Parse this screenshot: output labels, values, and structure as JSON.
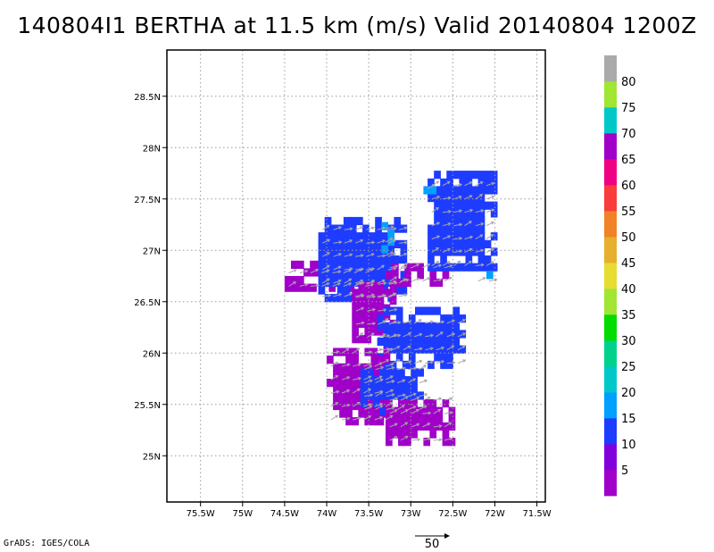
{
  "title": "140804I1 BERTHA at 11.5 km (m/s) Valid 20140804 1200Z",
  "credit": "GrADS: IGES/COLA",
  "chart_data": {
    "type": "heatmap",
    "title": "140804I1 BERTHA at 11.5 km (m/s) Valid 20140804 1200Z",
    "xlabel": "",
    "ylabel": "",
    "xlim": [
      -75.9,
      -71.4
    ],
    "ylim": [
      24.55,
      28.95
    ],
    "x_ticks": [
      -75.5,
      -75,
      -74.5,
      -74,
      -73.5,
      -73,
      -72.5,
      -72,
      -71.5
    ],
    "x_tick_labels": [
      "75.5W",
      "75W",
      "74.5W",
      "74W",
      "73.5W",
      "73W",
      "72.5W",
      "72W",
      "71.5W"
    ],
    "y_ticks": [
      25,
      25.5,
      26,
      26.5,
      27,
      27.5,
      28,
      28.5
    ],
    "y_tick_labels": [
      "25N",
      "25.5N",
      "26N",
      "26.5N",
      "27N",
      "27.5N",
      "28N",
      "28.5N"
    ],
    "grid": true,
    "colorbar": {
      "levels": [
        5,
        10,
        15,
        20,
        25,
        30,
        35,
        40,
        45,
        50,
        55,
        60,
        65,
        70,
        75,
        80
      ],
      "labels": [
        "5",
        "10",
        "15",
        "20",
        "25",
        "30",
        "35",
        "40",
        "45",
        "50",
        "55",
        "60",
        "65",
        "70",
        "75",
        "80"
      ],
      "colors": [
        "#a000c8",
        "#8200dc",
        "#1e3cff",
        "#00a0ff",
        "#00c8c8",
        "#00d28c",
        "#00dc00",
        "#a0e632",
        "#e6dc32",
        "#e6af2d",
        "#f08228",
        "#fa3c3c",
        "#f00082",
        "#a000c8",
        "#00c8c8",
        "#a0e632",
        "#aaaaaa"
      ]
    },
    "vector_reference": {
      "label": "50"
    },
    "regions": [
      {
        "name": "purple-west-arm",
        "value_class": "0-5",
        "color": "#a000c8",
        "lon_range": [
          -74.5,
          -73.5
        ],
        "lat_range": [
          26.6,
          26.85
        ]
      },
      {
        "name": "blue-north-central",
        "value_class": "10-15",
        "color": "#1e3cff",
        "lon_range": [
          -74.1,
          -73.1
        ],
        "lat_range": [
          26.5,
          27.3
        ]
      },
      {
        "name": "cyan-streak-north",
        "value_class": "15-20",
        "color": "#00a0ff",
        "lon_range": [
          -73.35,
          -73.2
        ],
        "lat_range": [
          26.9,
          27.25
        ]
      },
      {
        "name": "purple-east-arm",
        "value_class": "0-5",
        "color": "#a000c8",
        "lon_range": [
          -73.3,
          -72.6
        ],
        "lat_range": [
          26.65,
          26.85
        ]
      },
      {
        "name": "blue-northeast-band",
        "value_class": "10-15",
        "color": "#1e3cff",
        "lon_range": [
          -72.8,
          -72.0
        ],
        "lat_range": [
          26.8,
          27.75
        ]
      },
      {
        "name": "cyan-northeast-tip",
        "value_class": "15-20",
        "color": "#00a0ff",
        "lon_range": [
          -72.85,
          -72.7
        ],
        "lat_range": [
          27.55,
          27.7
        ]
      },
      {
        "name": "cyan-east-patch",
        "value_class": "15-20",
        "color": "#00a0ff",
        "lon_range": [
          -72.25,
          -72.05
        ],
        "lat_range": [
          26.65,
          26.8
        ]
      },
      {
        "name": "purple-central",
        "value_class": "0-5",
        "color": "#a000c8",
        "lon_range": [
          -73.7,
          -73.2
        ],
        "lat_range": [
          26.1,
          26.7
        ]
      },
      {
        "name": "blue-central-spiral",
        "value_class": "10-15",
        "color": "#1e3cff",
        "lon_range": [
          -73.4,
          -72.4
        ],
        "lat_range": [
          25.85,
          26.4
        ]
      },
      {
        "name": "purple-southwest",
        "value_class": "0-5",
        "color": "#a000c8",
        "lon_range": [
          -74.0,
          -73.3
        ],
        "lat_range": [
          25.3,
          26.0
        ]
      },
      {
        "name": "blue-south-curl",
        "value_class": "10-15",
        "color": "#1e3cff",
        "lon_range": [
          -73.6,
          -72.9
        ],
        "lat_range": [
          25.4,
          25.85
        ]
      },
      {
        "name": "purple-south",
        "value_class": "0-5",
        "color": "#a000c8",
        "lon_range": [
          -73.3,
          -72.5
        ],
        "lat_range": [
          25.1,
          25.55
        ]
      }
    ]
  }
}
